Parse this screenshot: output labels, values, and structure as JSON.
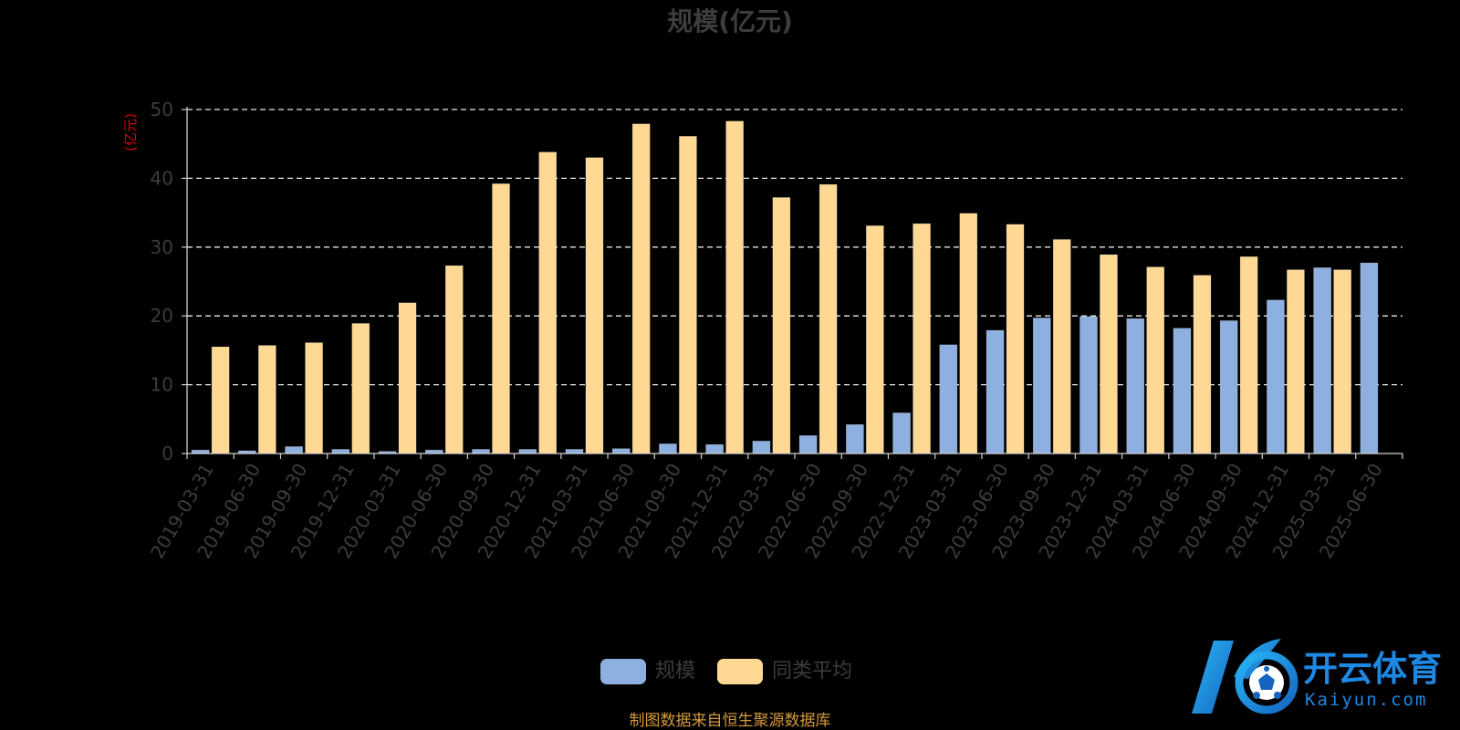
{
  "chart_data": {
    "type": "bar",
    "title": "规模(亿元)",
    "ylabel": "(亿元)",
    "ylim": [
      0,
      50
    ],
    "yticks": [
      "0",
      "10",
      "20",
      "30",
      "40",
      "50"
    ],
    "grid": true,
    "legend_position": "bottom-center",
    "categories": [
      "2019-03-31",
      "2019-06-30",
      "2019-09-30",
      "2019-12-31",
      "2020-03-31",
      "2020-06-30",
      "2020-09-30",
      "2020-12-31",
      "2021-03-31",
      "2021-06-30",
      "2021-09-30",
      "2021-12-31",
      "2022-03-31",
      "2022-06-30",
      "2022-09-30",
      "2022-12-31",
      "2023-03-31",
      "2023-06-30",
      "2023-09-30",
      "2023-12-31",
      "2024-03-31",
      "2024-06-30",
      "2024-09-30",
      "2024-12-31",
      "2025-03-31",
      "2025-06-30"
    ],
    "series": [
      {
        "name": "规模",
        "color": "#8eb0e0",
        "values": [
          0.5,
          0.4,
          1.0,
          0.6,
          0.3,
          0.5,
          0.6,
          0.6,
          0.6,
          0.7,
          1.4,
          1.3,
          1.8,
          2.6,
          4.2,
          5.9,
          15.8,
          17.9,
          19.7,
          19.9,
          19.6,
          18.2,
          19.3,
          22.3,
          27.0,
          27.7
        ]
      },
      {
        "name": "同类平均",
        "color": "#ffd993",
        "values": [
          15.5,
          15.7,
          16.1,
          18.9,
          21.9,
          27.3,
          39.2,
          43.8,
          43.0,
          47.9,
          46.1,
          48.3,
          37.2,
          39.1,
          33.1,
          33.4,
          34.9,
          33.3,
          31.1,
          28.9,
          27.1,
          25.9,
          28.6,
          26.7,
          26.7,
          null
        ]
      }
    ]
  },
  "footer": {
    "source": "制图数据来自恒生聚源数据库"
  },
  "watermark": {
    "name_cn": "开云体育",
    "name_en": "Kaiyun.com",
    "logo_letter": "K"
  }
}
